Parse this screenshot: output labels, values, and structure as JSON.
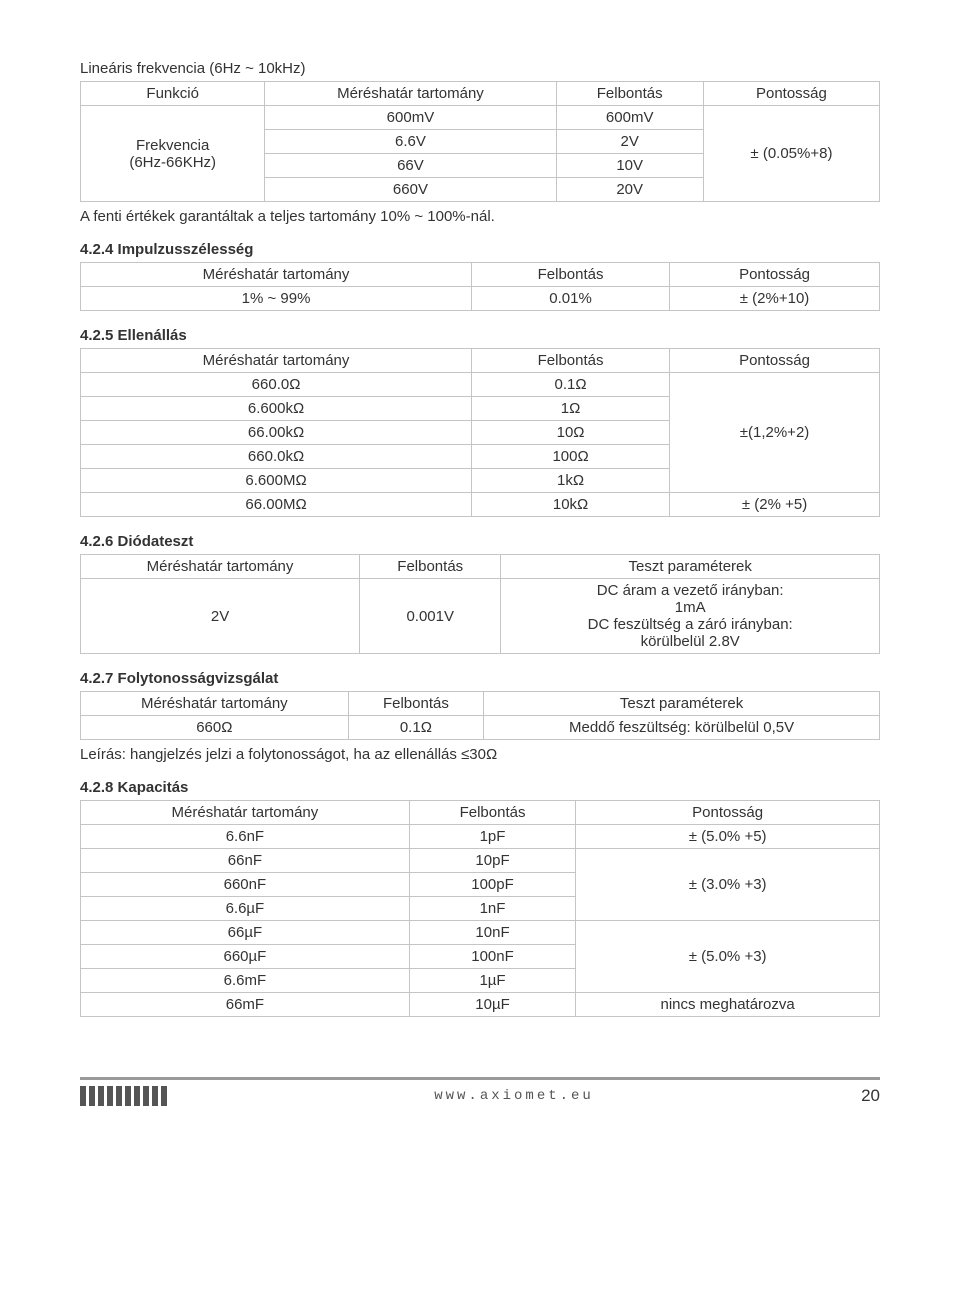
{
  "doc": {
    "intro_line": "Lineáris frekvencia (6Hz ~ 10kHz)",
    "note_line": "A fenti értékek garantáltak a teljes tartomány 10% ~ 100%-nál.",
    "footer_url": "www.axiomet.eu",
    "footer_page": "20"
  },
  "headers": {
    "funkcio": "Funkció",
    "tartomany": "Méréshatár tartomány",
    "felbontas": "Felbontás",
    "pontossag": "Pontosság",
    "teszt_param": "Teszt paraméterek"
  },
  "freq_table": {
    "func_label_l1": "Frekvencia",
    "func_label_l2": "(6Hz-66KHz)",
    "rows": [
      {
        "range": "600mV",
        "res": "600mV"
      },
      {
        "range": "6.6V",
        "res": "2V"
      },
      {
        "range": "66V",
        "res": "10V"
      },
      {
        "range": "660V",
        "res": "20V"
      }
    ],
    "accuracy": "± (0.05%+8)"
  },
  "s424": {
    "title": "4.2.4 Impulzusszélesség",
    "range": "1% ~ 99%",
    "res": "0.01%",
    "acc": "± (2%+10)"
  },
  "s425": {
    "title": "4.2.5 Ellenállás",
    "rows": [
      {
        "range": "660.0Ω",
        "res": "0.1Ω"
      },
      {
        "range": "6.600kΩ",
        "res": "1Ω"
      },
      {
        "range": "66.00kΩ",
        "res": "10Ω"
      },
      {
        "range": "660.0kΩ",
        "res": "100Ω"
      },
      {
        "range": "6.600MΩ",
        "res": "1kΩ"
      },
      {
        "range": "66.00MΩ",
        "res": "10kΩ"
      }
    ],
    "acc1": "±(1,2%+2)",
    "acc2": "± (2% +5)"
  },
  "s426": {
    "title": "4.2.6 Diódateszt",
    "range": "2V",
    "res": "0.001V",
    "param_l1": "DC áram a vezető irányban:",
    "param_l2": "1mA",
    "param_l3": "DC feszültség a záró irányban:",
    "param_l4": "körülbelül 2.8V"
  },
  "s427": {
    "title": "4.2.7 Folytonosságvizsgálat",
    "range": "660Ω",
    "res": "0.1Ω",
    "param": "Meddő feszültség: körülbelül 0,5V",
    "desc": "Leírás: hangjelzés jelzi a folytonosságot, ha az ellenállás ≤30Ω"
  },
  "s428": {
    "title": "4.2.8 Kapacitás",
    "rows": [
      {
        "range": "6.6nF",
        "res": "1pF"
      },
      {
        "range": "66nF",
        "res": "10pF"
      },
      {
        "range": "660nF",
        "res": "100pF"
      },
      {
        "range": "6.6µF",
        "res": "1nF"
      },
      {
        "range": "66µF",
        "res": "10nF"
      },
      {
        "range": "660µF",
        "res": "100nF"
      },
      {
        "range": "6.6mF",
        "res": "1µF"
      },
      {
        "range": "66mF",
        "res": "10µF"
      }
    ],
    "acc1": "± (5.0% +5)",
    "acc2": "± (3.0% +3)",
    "acc3": "± (5.0% +3)",
    "acc4": "nincs meghatározva"
  },
  "style": {
    "border_color": "#c5c5c5",
    "text_color": "#333333",
    "background": "#ffffff",
    "font_size_body": 15,
    "font_family": "Arial"
  }
}
